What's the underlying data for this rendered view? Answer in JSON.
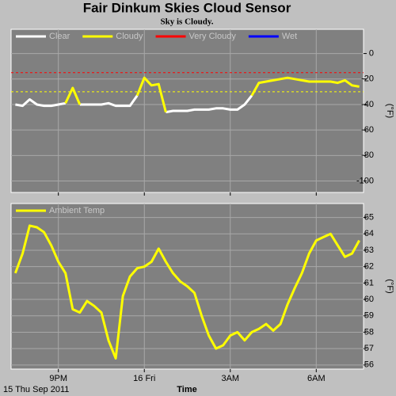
{
  "page": {
    "title": "Fair Dinkum Skies Cloud Sensor",
    "subtitle": "Sky is Cloudy.",
    "footnote": "15 Thu Sep 2011"
  },
  "chart_data": [
    {
      "type": "line",
      "x": [
        19.5,
        19.75,
        20,
        20.25,
        20.5,
        20.75,
        21,
        21.25,
        21.5,
        21.75,
        22,
        22.25,
        22.5,
        22.75,
        23,
        23.25,
        23.5,
        23.75,
        24,
        24.25,
        24.5,
        24.75,
        25,
        25.25,
        25.5,
        25.75,
        26,
        26.25,
        26.5,
        26.75,
        27,
        27.25,
        27.5,
        27.75,
        28,
        28.25,
        28.5,
        28.75,
        29,
        29.25,
        29.5,
        29.75,
        30,
        30.25,
        30.5,
        30.75,
        31,
        31.25,
        31.5
      ],
      "xlim": [
        19.35,
        31.65
      ],
      "xticks": [
        21,
        24,
        27,
        30
      ],
      "ylim": [
        -109,
        19
      ],
      "yticks": [
        0,
        -20,
        -40,
        -60,
        -80,
        -100
      ],
      "y_label": "(°F)",
      "grid": true,
      "thresholds": [
        {
          "value": -15,
          "color": "#ff0000"
        },
        {
          "value": -30,
          "color": "#ffff00"
        }
      ],
      "series": [
        {
          "name": "Clear",
          "color": "#ffffff",
          "values": [
            -40,
            -41,
            -36,
            -40,
            -41,
            -41,
            -40,
            -39,
            null,
            -40,
            -40,
            -40,
            -40,
            -39,
            -41,
            -41,
            -41,
            -33,
            null,
            null,
            null,
            -46,
            -45,
            -45,
            -45,
            -44,
            -44,
            -44,
            -43,
            -43,
            -44,
            -44,
            -40,
            -33,
            null,
            null,
            null,
            null,
            null,
            null,
            null,
            null,
            null,
            null,
            null,
            null,
            null,
            null,
            null
          ]
        },
        {
          "name": "Cloudy",
          "color": "#ffff00",
          "values": [
            null,
            null,
            null,
            null,
            null,
            null,
            null,
            -39,
            -27,
            -40,
            null,
            null,
            null,
            null,
            null,
            null,
            null,
            -33,
            -19,
            -25,
            -24,
            -46,
            null,
            null,
            null,
            null,
            null,
            null,
            null,
            null,
            null,
            null,
            null,
            -33,
            -23,
            -22,
            -21,
            -20,
            -19,
            -20,
            -21,
            -22,
            -22,
            -22,
            -22,
            -23,
            -21,
            -25,
            -26
          ]
        },
        {
          "name": "Very Cloudy",
          "color": "#ff0000"
        },
        {
          "name": "Wet",
          "color": "#0000ff"
        }
      ]
    },
    {
      "type": "line",
      "x": [
        19.5,
        19.75,
        20,
        20.25,
        20.5,
        20.75,
        21,
        21.25,
        21.5,
        21.75,
        22,
        22.25,
        22.5,
        22.75,
        23,
        23.25,
        23.5,
        23.75,
        24,
        24.25,
        24.5,
        24.75,
        25,
        25.25,
        25.5,
        25.75,
        26,
        26.25,
        26.5,
        26.75,
        27,
        27.25,
        27.5,
        27.75,
        28,
        28.25,
        28.5,
        28.75,
        29,
        29.25,
        29.5,
        29.75,
        30,
        30.25,
        30.5,
        30.75,
        31,
        31.25,
        31.5
      ],
      "xlim": [
        19.35,
        31.65
      ],
      "xticks": [
        {
          "value": 21,
          "label": "9PM"
        },
        {
          "value": 24,
          "label": "16 Fri"
        },
        {
          "value": 27,
          "label": "3AM"
        },
        {
          "value": 30,
          "label": "6AM"
        }
      ],
      "x_label": "Time",
      "ylim": [
        55.75,
        65.85
      ],
      "yticks": [
        56,
        57,
        58,
        59,
        60,
        61,
        62,
        63,
        64,
        65
      ],
      "y_label": "(°F)",
      "grid": true,
      "series": [
        {
          "name": "Ambient Temp",
          "color": "#ffff00",
          "values": [
            61.6,
            62.8,
            64.5,
            64.4,
            64.1,
            63.3,
            62.3,
            61.6,
            59.4,
            59.2,
            59.9,
            59.6,
            59.2,
            57.5,
            56.4,
            60.2,
            61.4,
            61.9,
            62.0,
            62.3,
            63.1,
            62.3,
            61.6,
            61.1,
            60.8,
            60.4,
            59.0,
            57.8,
            57.0,
            57.2,
            57.8,
            58.0,
            57.5,
            58.0,
            58.2,
            58.5,
            58.1,
            58.5,
            59.7,
            60.7,
            61.6,
            62.8,
            63.6,
            63.8,
            64.0,
            63.3,
            62.6,
            62.8,
            63.6
          ]
        }
      ]
    }
  ]
}
